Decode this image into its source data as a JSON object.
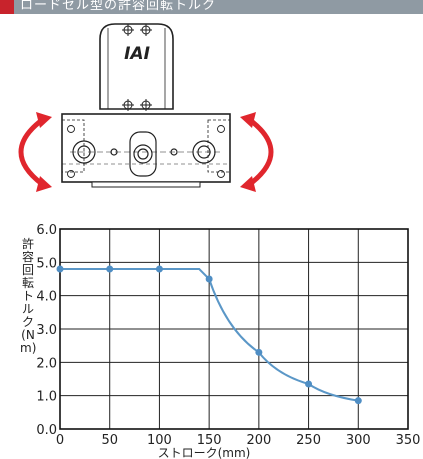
{
  "banner": {
    "title": "ロードセル型の許容回転トルク",
    "accent_color": "#c8232c",
    "bar_color": "#8f9aa3"
  },
  "illustration": {
    "logo": "IAI",
    "arrow_color": "#e0262d"
  },
  "chart_data": {
    "type": "line",
    "xlabel": "ストローク(mm)",
    "ylabel": "許容回転トルク(N m)",
    "xlim": [
      0,
      350
    ],
    "ylim": [
      0,
      6
    ],
    "xticks": [
      0,
      50,
      100,
      150,
      200,
      250,
      300,
      350
    ],
    "yticks": [
      0.0,
      1.0,
      2.0,
      3.0,
      4.0,
      5.0,
      6.0
    ],
    "x": [
      0,
      50,
      100,
      150,
      200,
      250,
      300
    ],
    "y": [
      4.8,
      4.8,
      4.8,
      4.5,
      2.3,
      1.35,
      0.85
    ],
    "x_break": 140,
    "grid": true,
    "line_color": "#5b97c7",
    "marker_color": "#4f8ec4"
  }
}
